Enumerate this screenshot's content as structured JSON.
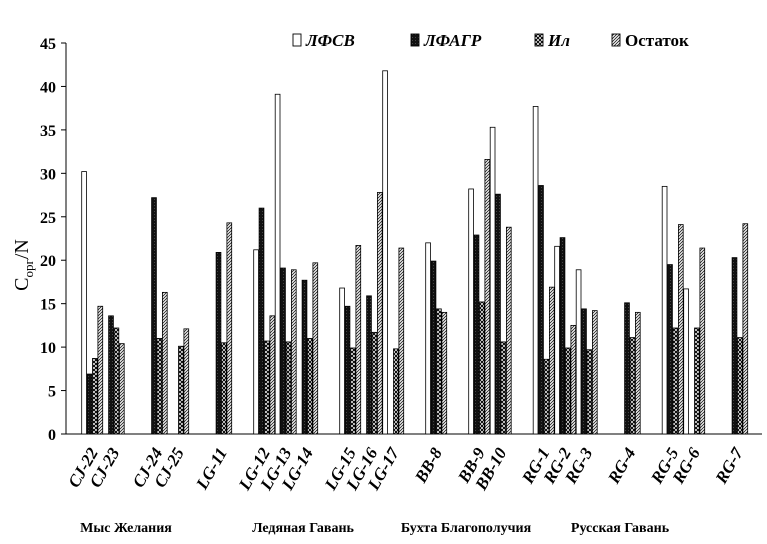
{
  "chart_data": {
    "type": "bar",
    "ylabel_main": "C",
    "ylabel_sub": "орг",
    "ylabel_rest": "/N",
    "ylim": [
      0,
      45
    ],
    "yticks": [
      "0",
      "5",
      "10",
      "15",
      "20",
      "25",
      "30",
      "35",
      "40",
      "45"
    ],
    "legend_placement": "top-right",
    "grid": false,
    "categories": [
      "CJ-22",
      "CJ-23",
      "CJ-24",
      "CJ-25",
      "LG-11",
      "LG-12",
      "LG-13",
      "LG-14",
      "LG-15",
      "LG-16",
      "LG-17",
      "BB-8",
      "BB-9",
      "BB-10",
      "RG-1",
      "RG-2",
      "RG-3",
      "RG-4",
      "RG-5",
      "RG-6",
      "RG-7"
    ],
    "series": [
      {
        "name": "ЛФСВ",
        "italic": true,
        "pattern": "white",
        "values": [
          30.2,
          null,
          null,
          null,
          null,
          21.2,
          39.1,
          null,
          16.8,
          null,
          41.8,
          22.0,
          28.2,
          35.3,
          37.7,
          21.6,
          18.9,
          null,
          28.5,
          16.7,
          null
        ]
      },
      {
        "name": "ЛФАГР",
        "italic": true,
        "pattern": "black",
        "values": [
          6.9,
          13.6,
          27.2,
          null,
          20.9,
          26.0,
          19.1,
          17.7,
          14.7,
          15.9,
          null,
          19.9,
          22.9,
          27.6,
          28.6,
          22.6,
          14.4,
          15.1,
          19.5,
          null,
          20.3
        ]
      },
      {
        "name": "Ил",
        "italic": true,
        "pattern": "cross",
        "values": [
          8.7,
          12.2,
          11.0,
          10.1,
          10.5,
          10.7,
          10.6,
          11.0,
          9.9,
          11.7,
          9.8,
          14.4,
          15.2,
          10.6,
          8.6,
          9.9,
          9.7,
          11.1,
          12.2,
          12.2,
          11.1
        ]
      },
      {
        "name": "Остаток",
        "italic": false,
        "pattern": "diag",
        "values": [
          14.7,
          10.4,
          16.3,
          12.1,
          24.3,
          13.6,
          18.9,
          19.7,
          21.7,
          27.8,
          21.4,
          14.0,
          31.6,
          23.8,
          16.9,
          12.5,
          14.2,
          14.0,
          24.1,
          21.4,
          24.2
        ]
      }
    ],
    "group_labels": [
      {
        "label": "Мыс Желания",
        "center_cat": [
          0,
          3
        ]
      },
      {
        "label": "Ледяная Гавань",
        "center_cat": [
          5,
          8
        ]
      },
      {
        "label": "Бухта Благополучия",
        "center_cat": [
          10,
          13
        ]
      },
      {
        "label": "Русская Гавань",
        "center_cat": [
          15,
          17
        ]
      }
    ]
  }
}
